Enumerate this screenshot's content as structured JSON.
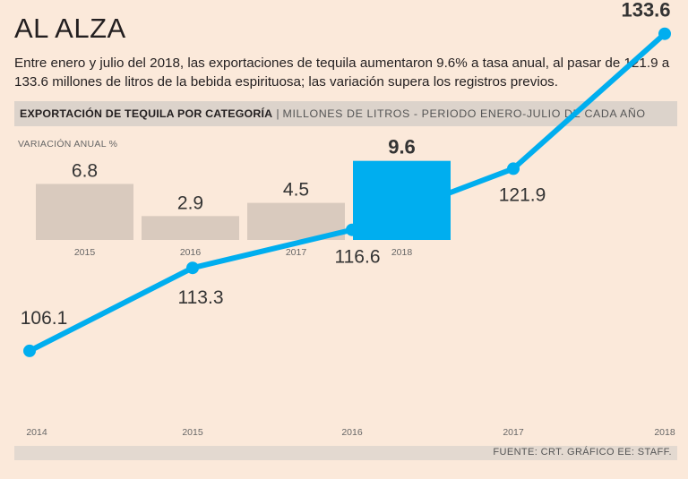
{
  "title": "AL ALZA",
  "subtitle": "Entre enero y julio del 2018, las exportaciones de tequila aumentaron 9.6% a tasa anual, al pasar de 121.9 a 133.6 millones de litros de la bebida espirituosa; las variación supera los registros previos.",
  "header": {
    "bold_label": "EXPORTACIÓN DE TEQUILA POR CATEGORÍA",
    "separator": "|",
    "light_label": "MILLONES DE LITROS - PERIODO ENERO-JULIO DE CADA AÑO"
  },
  "footer": "FUENTE: CRT.   GRÁFICO EE: STAFF.",
  "colors": {
    "background": "#fbe9da",
    "accent": "#00aeef",
    "bar_gray": "#d9cabe"
  },
  "chart_data": [
    {
      "type": "bar",
      "title": "VARIACIÓN ANUAL %",
      "categories": [
        "2015",
        "2016",
        "2017",
        "2018"
      ],
      "values": [
        6.8,
        2.9,
        4.5,
        9.6
      ],
      "value_labels": [
        "6.8",
        "2.9",
        "4.5",
        "9.6"
      ],
      "highlight": "2018",
      "ylim": [
        0,
        10
      ]
    },
    {
      "type": "line",
      "title": "MILLONES DE LITROS - PERIODO ENERO-JULIO DE CADA AÑO",
      "x": [
        "2014",
        "2015",
        "2016",
        "2017",
        "2018"
      ],
      "values": [
        106.1,
        113.3,
        116.6,
        121.9,
        133.6
      ],
      "value_labels": [
        "106.1",
        "113.3",
        "116.6",
        "121.9",
        "133.6"
      ],
      "highlight": "2018",
      "ylim": [
        100,
        135
      ]
    }
  ]
}
